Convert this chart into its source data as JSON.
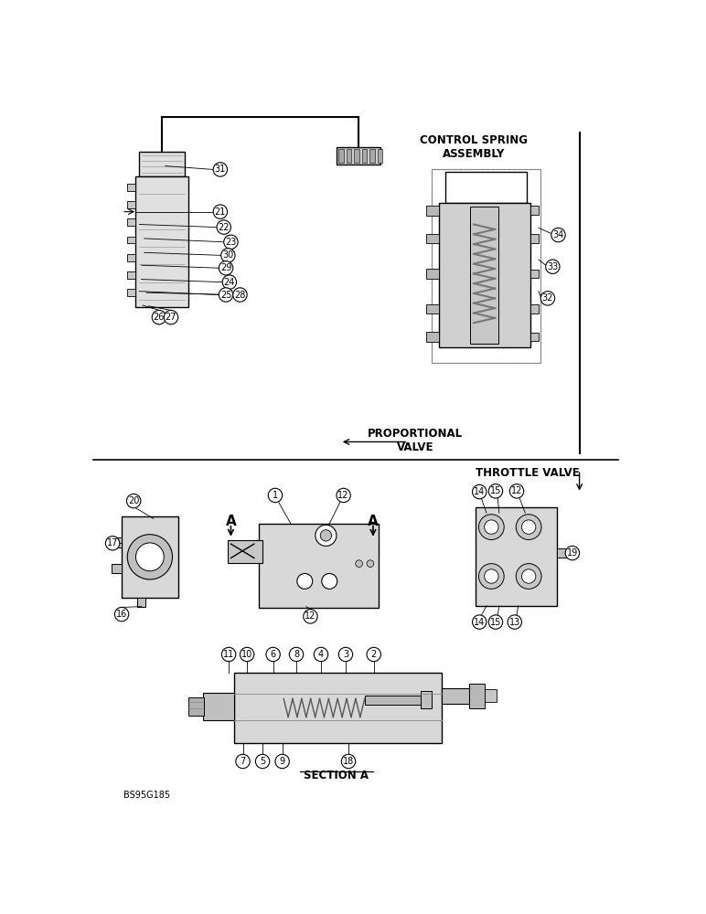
{
  "bg_color": "#ffffff",
  "line_color": "#000000",
  "text_color": "#000000",
  "fig_width": 7.72,
  "fig_height": 10.0,
  "labels": {
    "control_spring": "CONTROL SPRING\nASSEMBLY",
    "proportional_valve": "PROPORTIONAL\nVALVE",
    "throttle_valve": "THROTTLE VALVE",
    "section_a": "SECTION A",
    "part_number": "BS95G185"
  }
}
